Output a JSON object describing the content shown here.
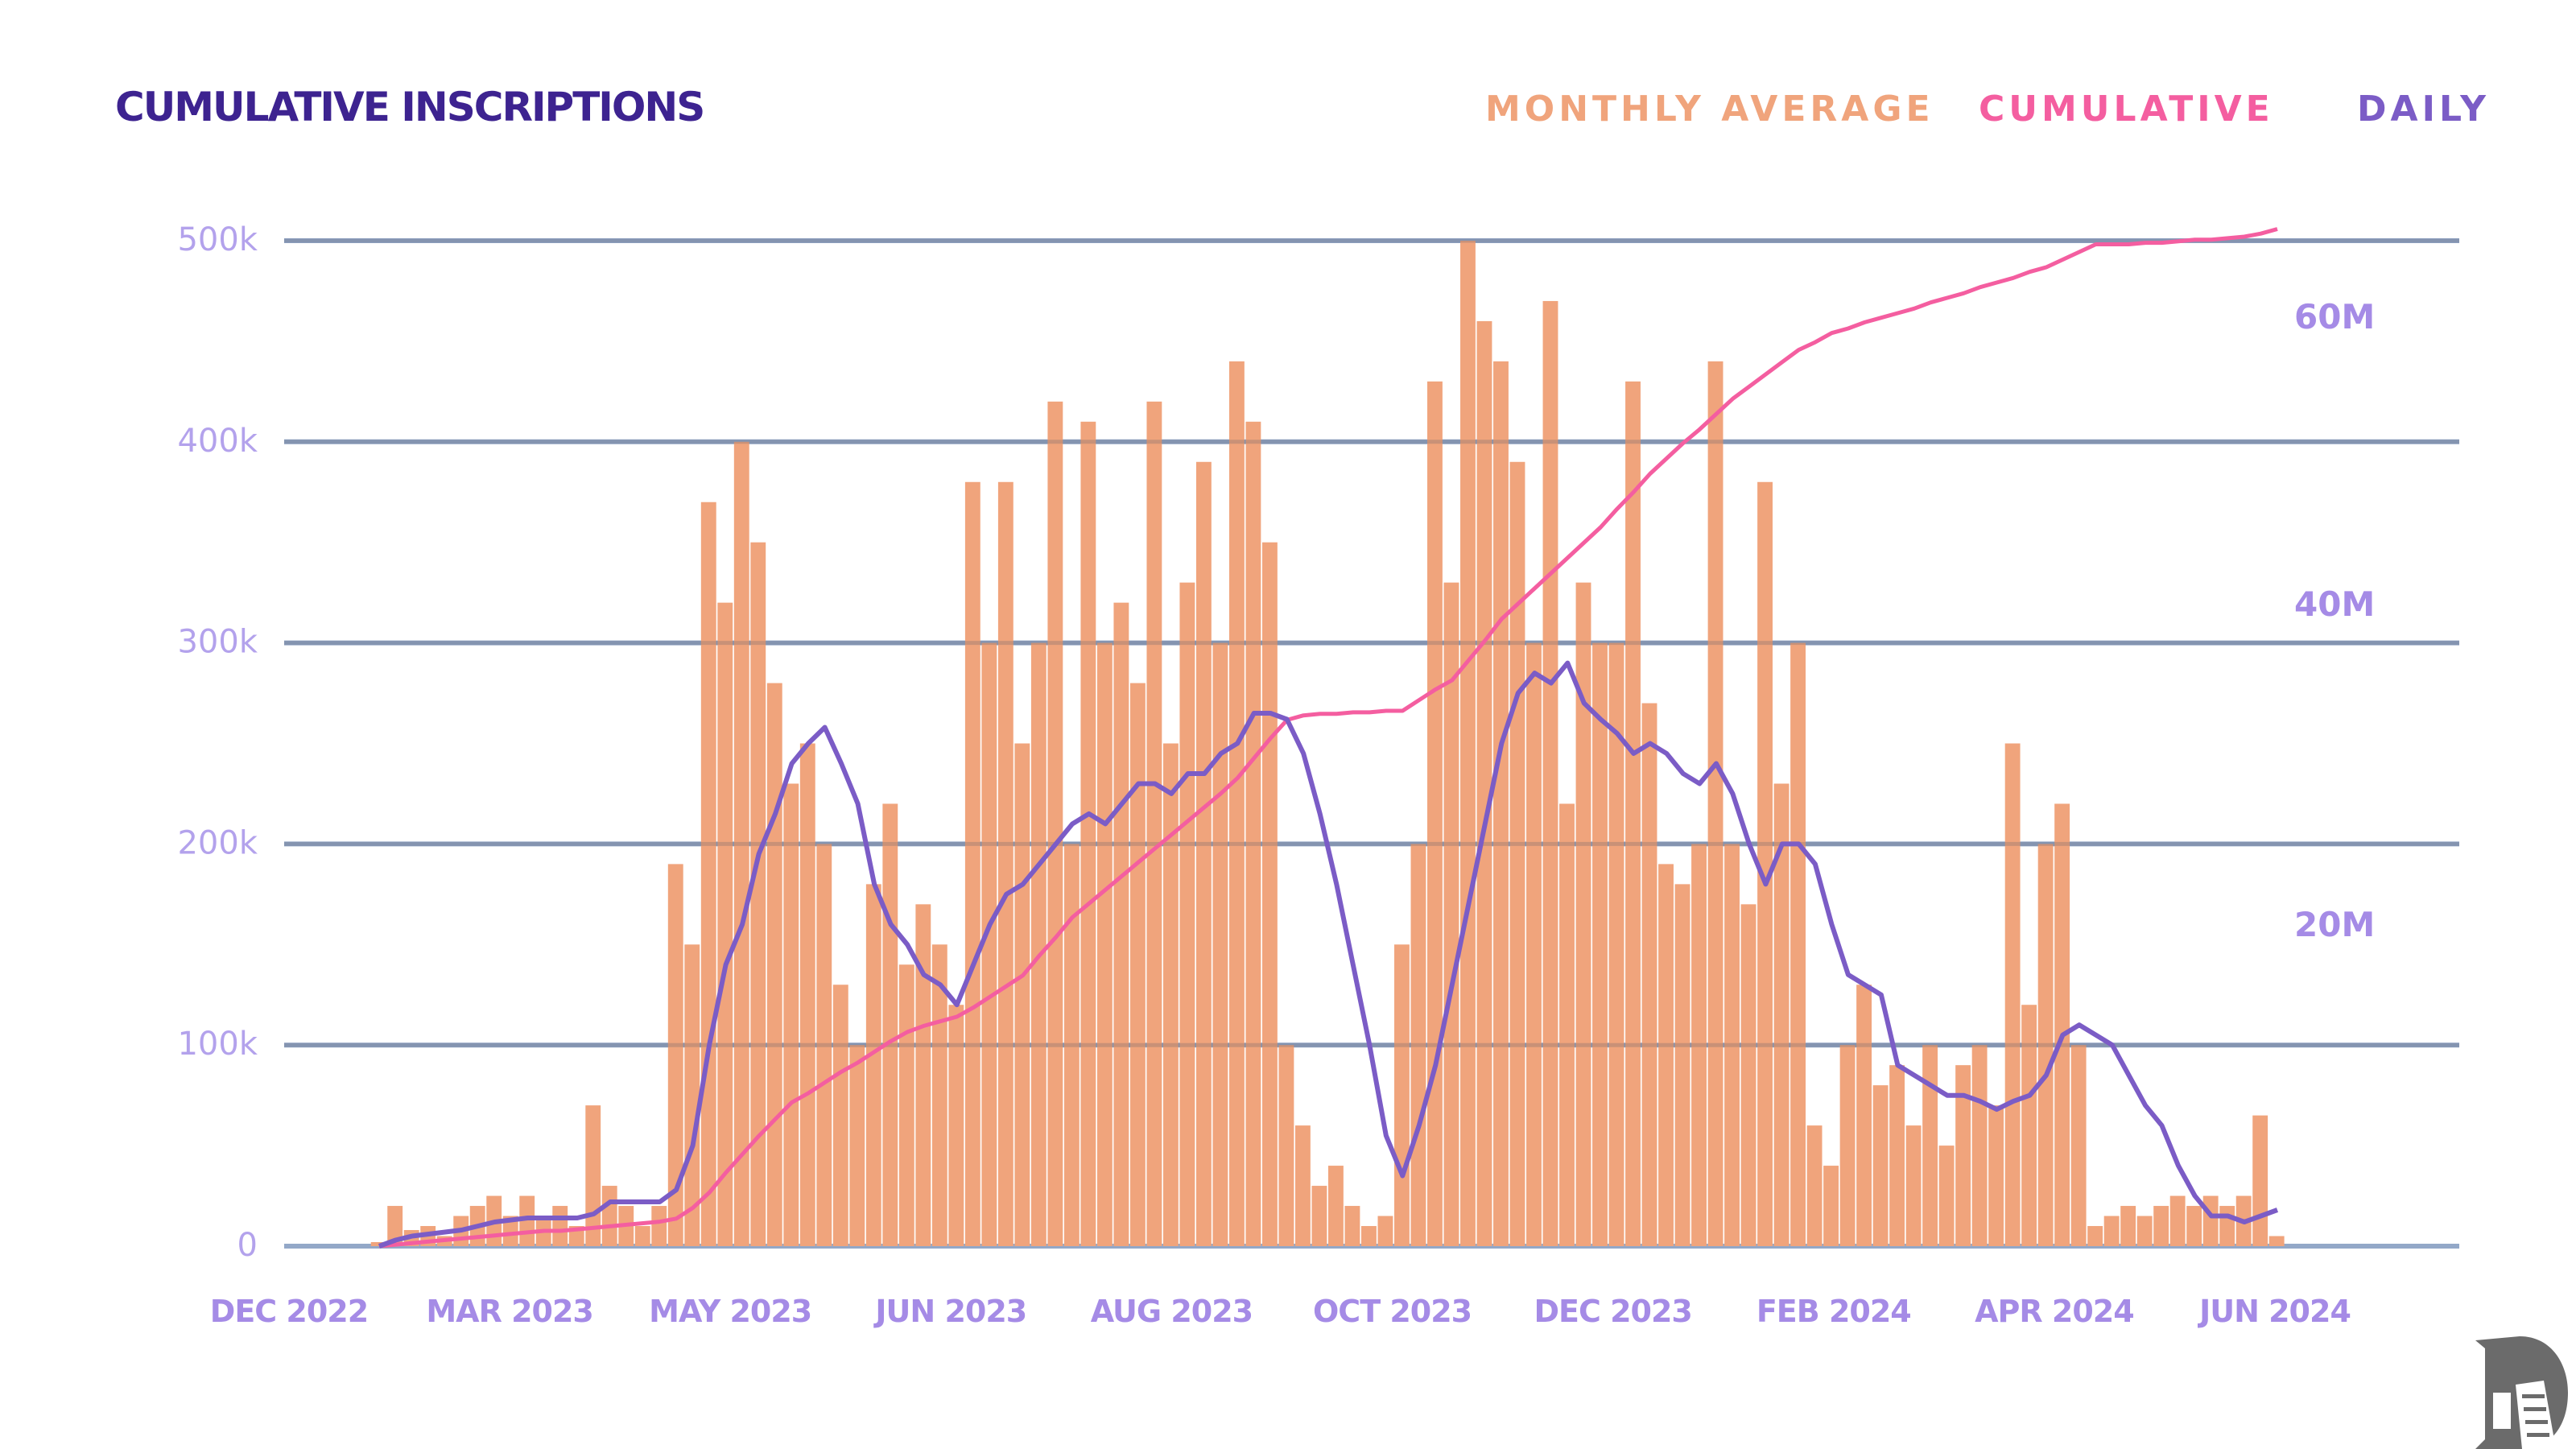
{
  "chart_data": {
    "type": "bar",
    "title": "Cumulative Inscriptions",
    "legend": [
      {
        "label": "Monthly Average",
        "color": "#f0a47c"
      },
      {
        "label": "Cumulative",
        "color": "#f45ea0"
      },
      {
        "label": "Daily",
        "color": "#7b5cc6"
      }
    ],
    "legend_placement": "top-right",
    "grid": true,
    "x_tick_labels": [
      "DEC 2022",
      "MAR 2023",
      "MAY 2023",
      "JUN 2023",
      "AUG 2023",
      "OCT 2023",
      "DEC 2023",
      "FEB 2024",
      "APR 2024",
      "JUN 2024"
    ],
    "y_left": {
      "ticks": [
        0,
        100000,
        200000,
        300000,
        400000,
        500000
      ],
      "tick_labels": [
        "0",
        "100k",
        "200k",
        "300k",
        "400k",
        "500k"
      ],
      "ylim": [
        0,
        500000
      ]
    },
    "y_right": {
      "ticks": [
        20000000,
        40000000,
        60000000
      ],
      "tick_labels": [
        "20M",
        "40M",
        "60M"
      ],
      "ylim": [
        0,
        54000000
      ]
    },
    "bars_daily_k": [
      2,
      20,
      8,
      10,
      5,
      15,
      20,
      25,
      15,
      25,
      15,
      20,
      10,
      70,
      30,
      20,
      10,
      20,
      190,
      150,
      370,
      320,
      400,
      350,
      280,
      230,
      250,
      200,
      130,
      100,
      180,
      220,
      140,
      170,
      150,
      120,
      380,
      300,
      380,
      250,
      300,
      420,
      200,
      410,
      300,
      320,
      280,
      420,
      250,
      330,
      390,
      300,
      440,
      410,
      350,
      100,
      60,
      30,
      40,
      20,
      10,
      15,
      150,
      200,
      430,
      330,
      500,
      460,
      440,
      390,
      300,
      470,
      220,
      330,
      300,
      300,
      430,
      270,
      190,
      180,
      200,
      440,
      200,
      170,
      380,
      230,
      300,
      60,
      40,
      100,
      130,
      80,
      90,
      60,
      100,
      50,
      90,
      100,
      70,
      250,
      120,
      200,
      220,
      100,
      10,
      15,
      20,
      15,
      20,
      25,
      20,
      25,
      20,
      25,
      65,
      5
    ],
    "line_avg_k": [
      0,
      3,
      5,
      6,
      7,
      8,
      10,
      12,
      13,
      14,
      14,
      14,
      14,
      16,
      22,
      22,
      22,
      22,
      28,
      50,
      100,
      140,
      160,
      195,
      215,
      240,
      250,
      258,
      240,
      220,
      180,
      160,
      150,
      135,
      130,
      120,
      140,
      160,
      175,
      180,
      190,
      200,
      210,
      215,
      210,
      220,
      230,
      230,
      225,
      235,
      235,
      245,
      250,
      265,
      265,
      262,
      245,
      215,
      180,
      140,
      100,
      55,
      35,
      60,
      90,
      130,
      170,
      210,
      250,
      275,
      285,
      280,
      290,
      270,
      262,
      255,
      245,
      250,
      245,
      235,
      230,
      240,
      225,
      200,
      180,
      200,
      200,
      190,
      160,
      135,
      130,
      125,
      90,
      85,
      80,
      75,
      75,
      72,
      68,
      72,
      75,
      85,
      105,
      110,
      105,
      100,
      85,
      70,
      60,
      40,
      25,
      15,
      15,
      12,
      15,
      18
    ],
    "line_cumulative_M": [
      0,
      0.1,
      0.2,
      0.3,
      0.4,
      0.5,
      0.6,
      0.7,
      0.8,
      0.9,
      1.0,
      1.0,
      1.1,
      1.2,
      1.3,
      1.4,
      1.5,
      1.6,
      1.8,
      2.5,
      3.5,
      4.8,
      6.0,
      7.2,
      8.3,
      9.4,
      10.0,
      10.7,
      11.4,
      12.0,
      12.7,
      13.4,
      14.0,
      14.4,
      14.7,
      15.0,
      15.6,
      16.3,
      17.0,
      17.7,
      19.0,
      20.2,
      21.5,
      22.4,
      23.3,
      24.2,
      25.1,
      26.0,
      26.9,
      27.8,
      28.7,
      29.6,
      30.6,
      31.9,
      33.2,
      34.4,
      34.7,
      34.8,
      34.8,
      34.9,
      34.9,
      35.0,
      35.0,
      35.7,
      36.4,
      37.0,
      38.3,
      39.6,
      41.0,
      42.0,
      43.0,
      44.0,
      45.0,
      46.0,
      47.0,
      48.2,
      49.3,
      50.5,
      51.5,
      52.5,
      53.4,
      54.4,
      55.4,
      56.2,
      57.0,
      57.8,
      58.6,
      59.1,
      59.7,
      60.0,
      60.4,
      60.7,
      61.0,
      61.3,
      61.7,
      62.0,
      62.3,
      62.7,
      63.0,
      63.3,
      63.7,
      64.0,
      64.5,
      65.0,
      65.5,
      65.5,
      65.5,
      65.6,
      65.6,
      65.7,
      65.8,
      65.8,
      65.9,
      66.0,
      66.2,
      66.5
    ]
  }
}
